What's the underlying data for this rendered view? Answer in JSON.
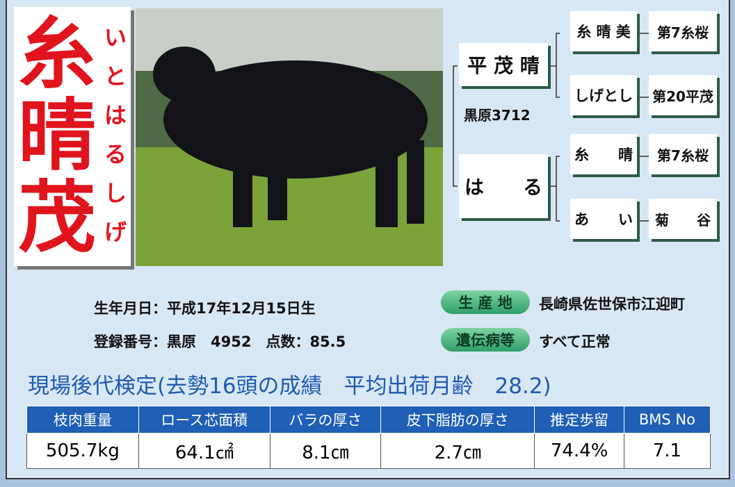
{
  "title": {
    "kanji": [
      "糸",
      "晴",
      "茂"
    ],
    "kana": [
      "い",
      "と",
      "は",
      "る",
      "し",
      "げ"
    ]
  },
  "pedigree": {
    "sire": {
      "name": "平 茂 晴",
      "registration": "黒原3712"
    },
    "dam": {
      "name": "は　　る"
    },
    "grandparents": [
      "糸 晴 美",
      "しげとし",
      "糸　　晴",
      "あ　　い"
    ],
    "great_grandparents": [
      "第7糸桜",
      "第20平茂",
      "第7糸桜",
      "菊　　谷"
    ]
  },
  "info": {
    "birth": "生年月日：平成17年12月15日生",
    "registration": "登録番号：黒原　4952　点数：85.5",
    "origin": {
      "label": "生 産 地",
      "value": "長崎県佐世保市江迎町"
    },
    "genetic": {
      "label": "遺伝病等",
      "value": "すべて正常"
    }
  },
  "table": {
    "caption": "現場後代検定(去勢16頭の成績　平均出荷月齢　28.2)",
    "headers": [
      "枝肉重量",
      "ロース芯面積",
      "バラの厚さ",
      "皮下脂肪の厚さ",
      "推定歩留",
      "BMS No"
    ],
    "rows": [
      [
        "505.7kg",
        "64.1㎠",
        "8.1㎝",
        "2.7㎝",
        "74.4%",
        "7.1"
      ]
    ]
  }
}
